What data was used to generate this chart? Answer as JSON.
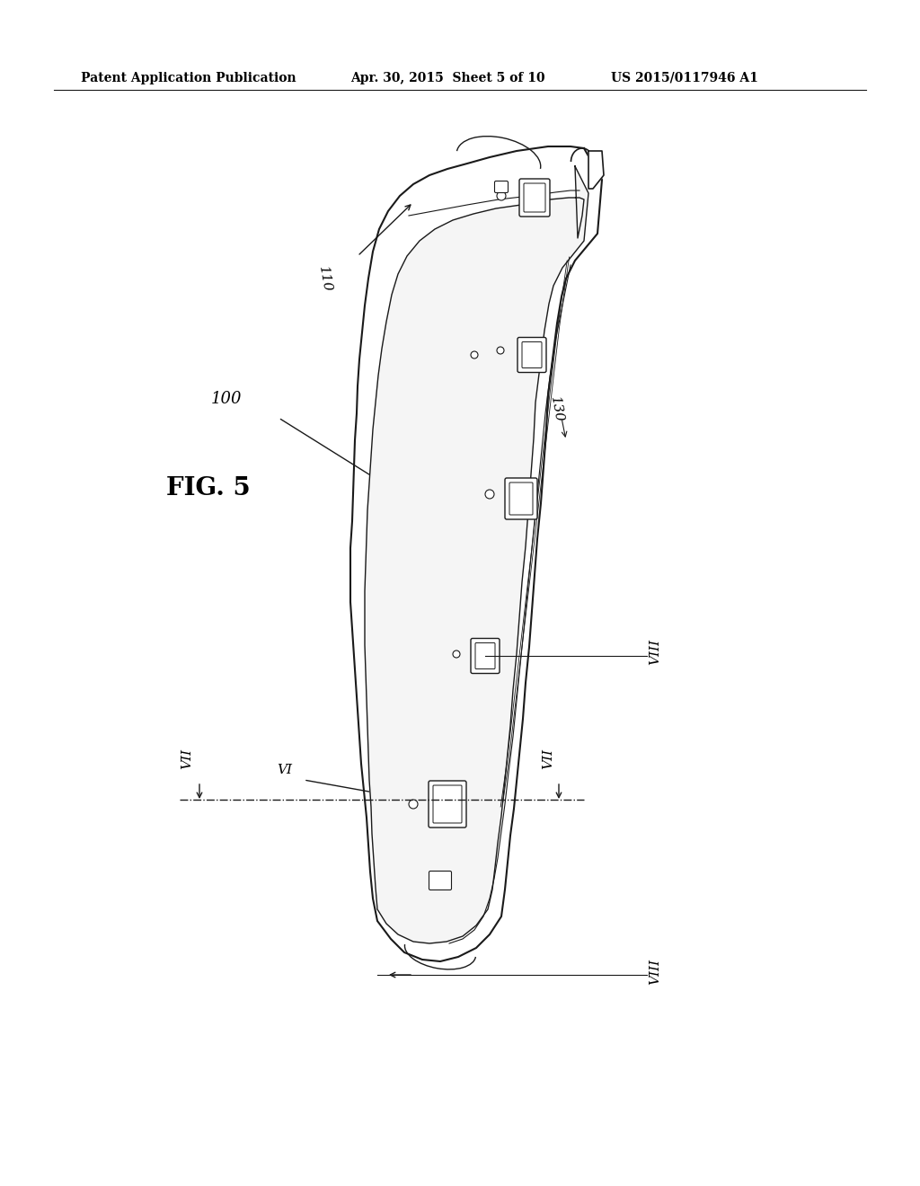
{
  "bg_color": "#ffffff",
  "header_text": "Patent Application Publication",
  "header_date": "Apr. 30, 2015  Sheet 5 of 10",
  "header_patent": "US 2015/0117946 A1",
  "fig_label": "FIG. 5",
  "label_100": "100",
  "label_110": "110",
  "label_130": "130",
  "label_VI": "VI",
  "label_VII_left": "VII",
  "label_VII_right": "VII",
  "label_VIII_bottom": "VIII",
  "label_VIII_right": "VIII",
  "line_color": "#1a1a1a",
  "text_color": "#000000"
}
